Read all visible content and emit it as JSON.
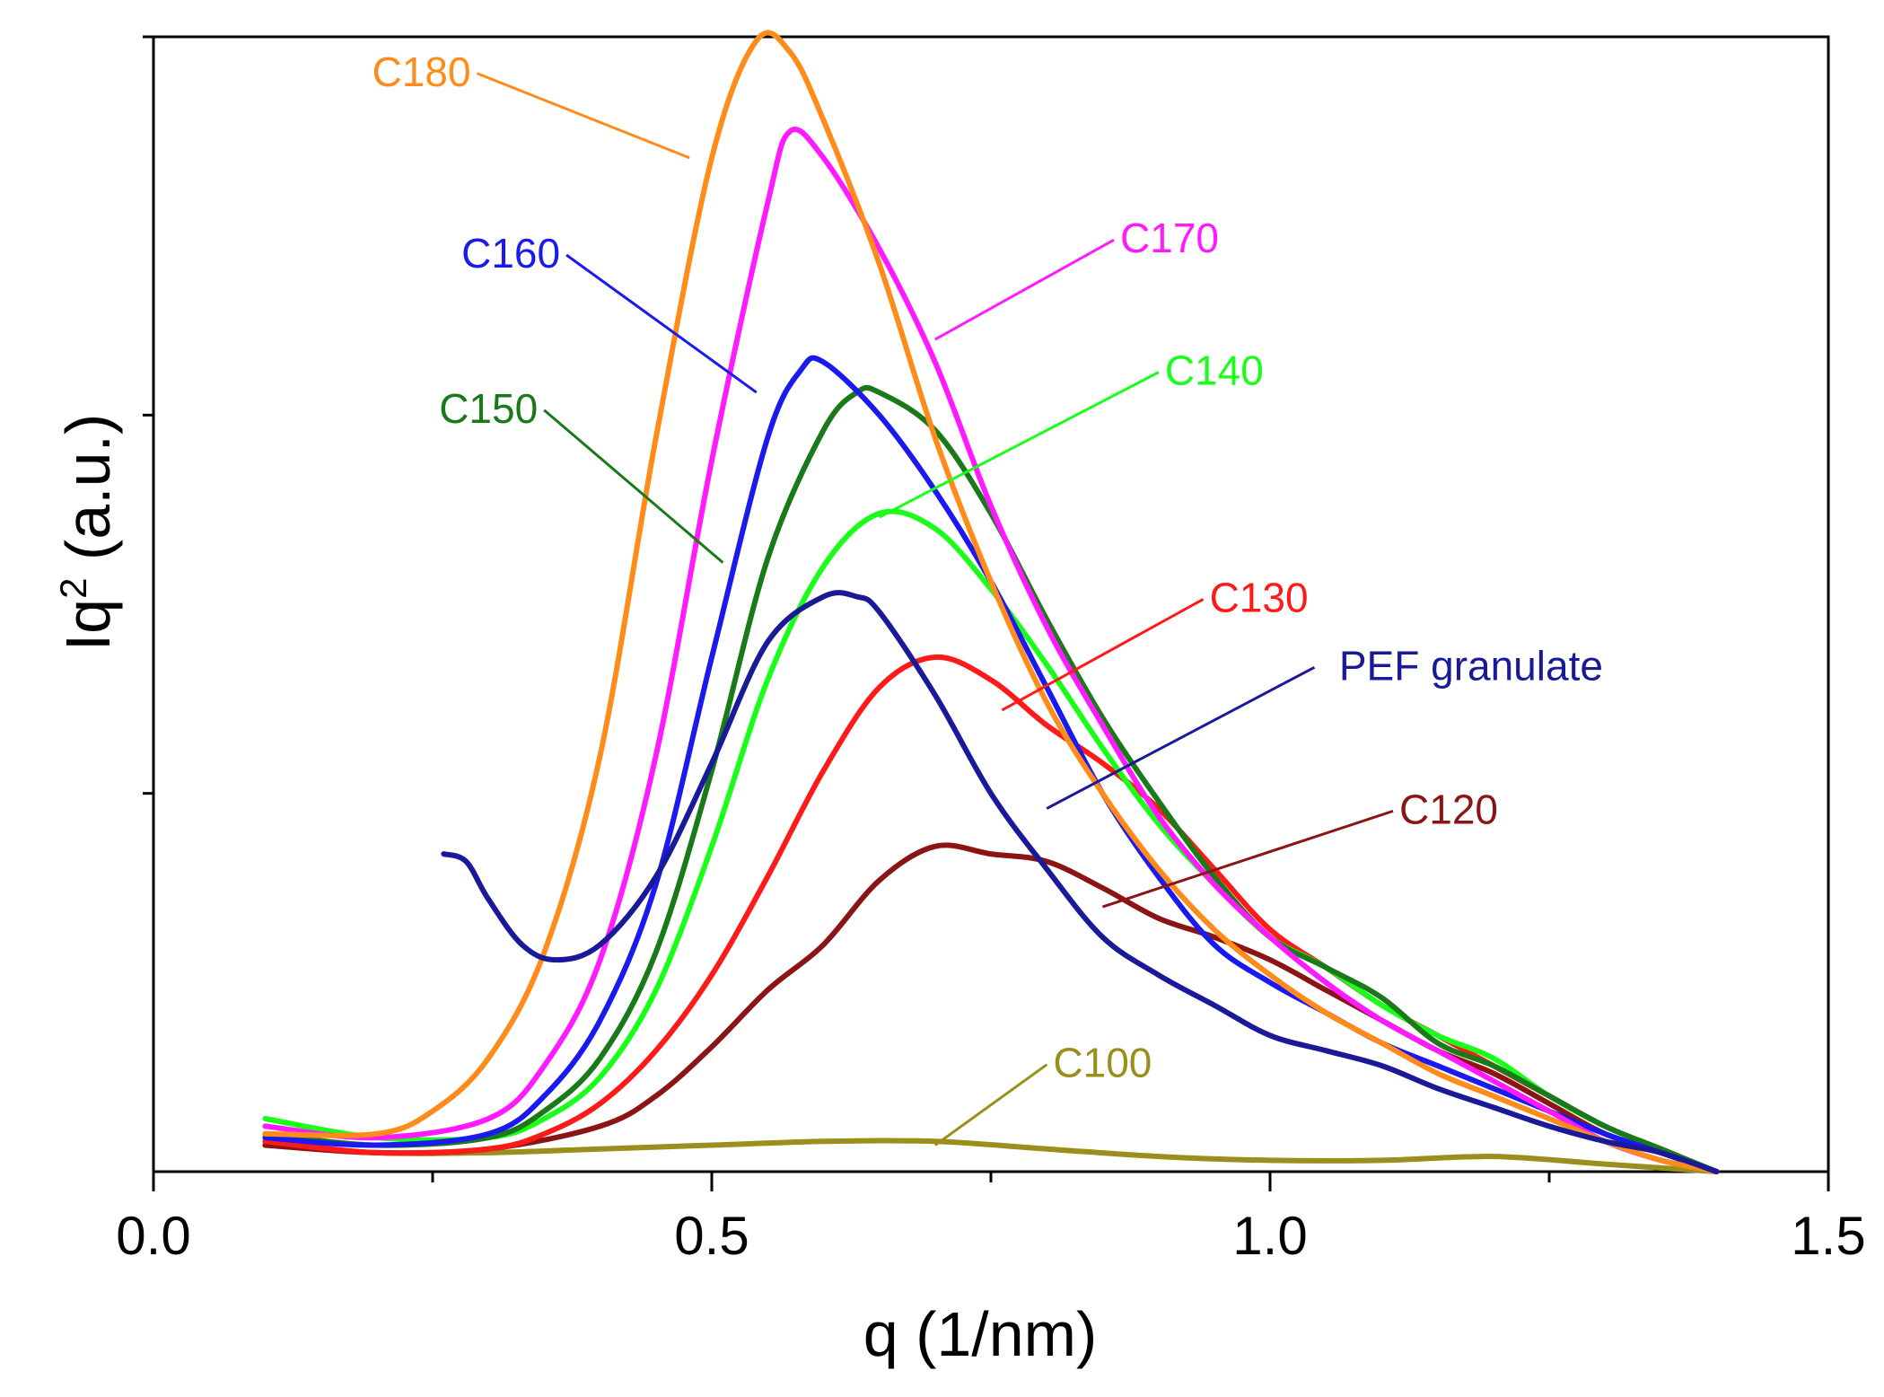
{
  "chart_data": {
    "type": "line",
    "title": "",
    "xlabel": "q (1/nm)",
    "ylabel_main": "Iq",
    "ylabel_sup": "2",
    "ylabel_rest": " (a.u.)",
    "xlim": [
      0,
      1.5
    ],
    "ylim": [
      0,
      3
    ],
    "x_major_ticks": [
      0.0,
      0.5,
      1.0,
      1.5
    ],
    "x_tick_labels": [
      "0.0",
      "0.5",
      "1.0",
      "1.5"
    ],
    "x_minor_ticks": [
      0.25,
      0.75,
      1.25
    ],
    "y_ticks": [
      1,
      2,
      3
    ],
    "series": [
      {
        "name": "C100",
        "color": "#9a8f1c",
        "x": [
          0.1,
          0.2,
          0.3,
          0.4,
          0.5,
          0.6,
          0.7,
          0.8,
          0.9,
          1.0,
          1.1,
          1.2,
          1.3,
          1.4
        ],
        "y": [
          0.07,
          0.05,
          0.05,
          0.06,
          0.07,
          0.08,
          0.08,
          0.06,
          0.04,
          0.03,
          0.03,
          0.04,
          0.02,
          0.0
        ],
        "label_at": [
          0.85,
          0.25
        ],
        "leader_to": [
          0.7,
          0.07
        ]
      },
      {
        "name": "C120",
        "color": "#8b1414",
        "x": [
          0.1,
          0.2,
          0.3,
          0.4,
          0.45,
          0.5,
          0.55,
          0.6,
          0.65,
          0.7,
          0.75,
          0.8,
          0.85,
          0.9,
          0.95,
          1.0,
          1.05,
          1.1,
          1.15,
          1.2,
          1.25,
          1.3,
          1.35,
          1.4
        ],
        "y": [
          0.07,
          0.05,
          0.06,
          0.12,
          0.2,
          0.33,
          0.48,
          0.6,
          0.77,
          0.86,
          0.84,
          0.82,
          0.75,
          0.67,
          0.62,
          0.56,
          0.48,
          0.4,
          0.32,
          0.26,
          0.18,
          0.1,
          0.05,
          0.0
        ],
        "label_at": [
          1.16,
          0.92
        ],
        "leader_to": [
          0.85,
          0.7
        ]
      },
      {
        "name": "C130",
        "color": "#ff1a1a",
        "x": [
          0.1,
          0.2,
          0.3,
          0.35,
          0.4,
          0.45,
          0.5,
          0.55,
          0.6,
          0.65,
          0.7,
          0.75,
          0.8,
          0.85,
          0.9,
          0.95,
          1.0,
          1.05,
          1.1,
          1.15,
          1.2,
          1.25,
          1.3,
          1.35,
          1.4
        ],
        "y": [
          0.08,
          0.05,
          0.06,
          0.1,
          0.18,
          0.32,
          0.52,
          0.78,
          1.06,
          1.28,
          1.36,
          1.3,
          1.18,
          1.08,
          0.96,
          0.8,
          0.64,
          0.54,
          0.44,
          0.36,
          0.28,
          0.2,
          0.12,
          0.06,
          0.0
        ],
        "label_at": [
          0.99,
          1.48
        ],
        "leader_to": [
          0.76,
          1.22
        ]
      },
      {
        "name": "C140",
        "color": "#1aff1a",
        "x": [
          0.1,
          0.2,
          0.3,
          0.35,
          0.4,
          0.45,
          0.5,
          0.55,
          0.6,
          0.65,
          0.7,
          0.75,
          0.8,
          0.85,
          0.9,
          0.95,
          1.0,
          1.05,
          1.1,
          1.15,
          1.2,
          1.25,
          1.3,
          1.35,
          1.4
        ],
        "y": [
          0.14,
          0.09,
          0.09,
          0.14,
          0.25,
          0.48,
          0.86,
          1.3,
          1.6,
          1.74,
          1.7,
          1.54,
          1.34,
          1.12,
          0.92,
          0.76,
          0.62,
          0.54,
          0.44,
          0.36,
          0.3,
          0.2,
          0.12,
          0.06,
          0.0
        ],
        "label_at": [
          0.95,
          2.08
        ],
        "leader_to": [
          0.65,
          1.73
        ]
      },
      {
        "name": "C150",
        "color": "#1a7a1a",
        "x": [
          0.1,
          0.2,
          0.3,
          0.35,
          0.4,
          0.45,
          0.5,
          0.55,
          0.6,
          0.63,
          0.65,
          0.7,
          0.75,
          0.8,
          0.85,
          0.9,
          0.95,
          1.0,
          1.05,
          1.1,
          1.15,
          1.2,
          1.25,
          1.3,
          1.35,
          1.4
        ],
        "y": [
          0.1,
          0.07,
          0.09,
          0.16,
          0.3,
          0.58,
          1.06,
          1.62,
          1.96,
          2.06,
          2.06,
          1.96,
          1.74,
          1.46,
          1.2,
          0.98,
          0.78,
          0.62,
          0.54,
          0.46,
          0.34,
          0.28,
          0.2,
          0.12,
          0.06,
          0.0
        ],
        "label_at": [
          0.3,
          1.98
        ],
        "leader_to": [
          0.51,
          1.61
        ]
      },
      {
        "name": "C160",
        "color": "#1a1aee",
        "x": [
          0.1,
          0.2,
          0.3,
          0.35,
          0.4,
          0.45,
          0.5,
          0.55,
          0.58,
          0.6,
          0.65,
          0.7,
          0.75,
          0.8,
          0.85,
          0.9,
          0.95,
          1.0,
          1.05,
          1.1,
          1.15,
          1.2,
          1.25,
          1.3,
          1.35,
          1.4
        ],
        "y": [
          0.09,
          0.07,
          0.1,
          0.2,
          0.4,
          0.76,
          1.36,
          1.94,
          2.12,
          2.14,
          2.0,
          1.8,
          1.56,
          1.28,
          1.0,
          0.78,
          0.6,
          0.5,
          0.42,
          0.34,
          0.28,
          0.22,
          0.16,
          0.1,
          0.05,
          0.0
        ],
        "label_at": [
          0.32,
          2.39
        ],
        "leader_to": [
          0.54,
          2.06
        ]
      },
      {
        "name": "C170",
        "color": "#ff1aff",
        "x": [
          0.1,
          0.2,
          0.3,
          0.35,
          0.4,
          0.45,
          0.5,
          0.55,
          0.57,
          0.6,
          0.65,
          0.7,
          0.75,
          0.8,
          0.85,
          0.9,
          0.95,
          1.0,
          1.05,
          1.1,
          1.15,
          1.2,
          1.25,
          1.3,
          1.35,
          1.4
        ],
        "y": [
          0.12,
          0.09,
          0.14,
          0.28,
          0.56,
          1.1,
          1.88,
          2.56,
          2.75,
          2.68,
          2.44,
          2.14,
          1.76,
          1.44,
          1.18,
          0.94,
          0.76,
          0.62,
          0.5,
          0.4,
          0.32,
          0.24,
          0.16,
          0.08,
          0.03,
          0.0
        ],
        "label_at": [
          0.91,
          2.43
        ],
        "leader_to": [
          0.7,
          2.2
        ]
      },
      {
        "name": "C180",
        "color": "#ff8c1a",
        "x": [
          0.1,
          0.2,
          0.25,
          0.3,
          0.35,
          0.4,
          0.45,
          0.5,
          0.54,
          0.57,
          0.6,
          0.65,
          0.7,
          0.75,
          0.8,
          0.85,
          0.9,
          0.95,
          1.0,
          1.05,
          1.1,
          1.15,
          1.2,
          1.25,
          1.3,
          1.35,
          1.4
        ],
        "y": [
          0.1,
          0.1,
          0.16,
          0.3,
          0.58,
          1.1,
          1.94,
          2.68,
          2.99,
          2.96,
          2.78,
          2.4,
          1.94,
          1.56,
          1.24,
          1.0,
          0.8,
          0.64,
          0.52,
          0.42,
          0.34,
          0.26,
          0.2,
          0.14,
          0.08,
          0.03,
          0.0
        ],
        "label_at": [
          0.24,
          2.87
        ],
        "leader_to": [
          0.48,
          2.68
        ]
      },
      {
        "name": "PEF granulate",
        "color": "#1a1a99",
        "x": [
          0.26,
          0.28,
          0.3,
          0.33,
          0.36,
          0.4,
          0.45,
          0.5,
          0.55,
          0.6,
          0.63,
          0.65,
          0.7,
          0.75,
          0.8,
          0.85,
          0.9,
          0.95,
          1.0,
          1.05,
          1.1,
          1.15,
          1.2,
          1.25,
          1.3,
          1.35,
          1.4
        ],
        "y": [
          0.84,
          0.82,
          0.72,
          0.6,
          0.56,
          0.6,
          0.78,
          1.08,
          1.4,
          1.52,
          1.52,
          1.48,
          1.26,
          1.0,
          0.8,
          0.62,
          0.52,
          0.44,
          0.36,
          0.32,
          0.28,
          0.22,
          0.17,
          0.12,
          0.08,
          0.05,
          0.0
        ],
        "label_at": [
          1.18,
          1.3
        ],
        "leader_to": [
          0.8,
          0.96
        ]
      }
    ]
  }
}
